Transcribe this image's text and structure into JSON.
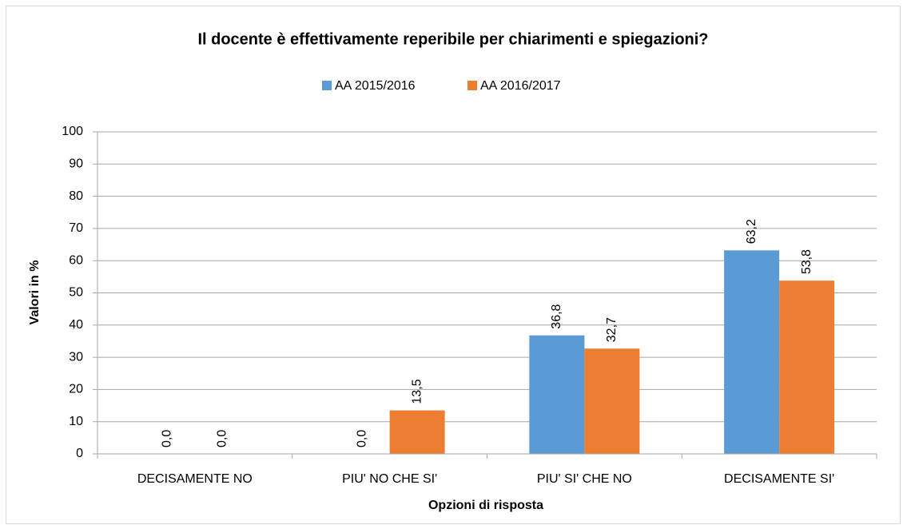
{
  "chart_data": {
    "type": "bar",
    "title": "Il docente è effettivamente reperibile per chiarimenti e spiegazioni?",
    "x_label": "Opzioni di risposta",
    "y_label": "Valori in %",
    "categories": [
      "DECISAMENTE NO",
      "PIU' NO CHE SI'",
      "PIU' SI' CHE NO",
      "DECISAMENTE SI'"
    ],
    "series": [
      {
        "name": "AA 2015/2016",
        "color": "#5b9bd5",
        "values": [
          0,
          0,
          36.8,
          63.2
        ],
        "value_labels": [
          "0,0",
          "0,0",
          "36,8",
          "63,2"
        ]
      },
      {
        "name": "AA 2016/2017",
        "color": "#ed7d31",
        "values": [
          0,
          13.5,
          32.7,
          53.8
        ],
        "value_labels": [
          "0,0",
          "13,5",
          "32,7",
          "53,8"
        ]
      }
    ],
    "ylim": [
      0,
      100
    ],
    "yticks": [
      0,
      10,
      20,
      30,
      40,
      50,
      60,
      70,
      80,
      90,
      100
    ],
    "grid": true,
    "legend": "top"
  }
}
